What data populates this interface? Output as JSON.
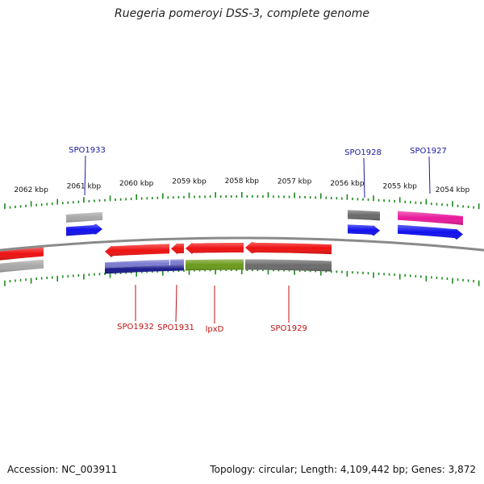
{
  "title": "Ruegeria pomeroyi DSS-3, complete genome",
  "footer": {
    "accession": "Accession: NC_003911",
    "summary": "Topology: circular; Length: 4,109,442 bp; Genes: 3,872"
  },
  "colors": {
    "backbone": "#8a8a8a",
    "tick": "#1a8a1a",
    "label_forward": "#1a1aa0",
    "label_reverse": "#c01010",
    "red": "#ee1111",
    "blue": "#1010ee",
    "navy": "#1a1a8c",
    "gray": "#a8a8a8",
    "darkgray": "#6a6a6a",
    "pink": "#e8199a",
    "olive": "#6a9a1a",
    "lavender": "#7b7bd0"
  },
  "scale": {
    "labels": [
      {
        "kbp": 2062,
        "text": "2062 kbp"
      },
      {
        "kbp": 2061,
        "text": "2061 kbp"
      },
      {
        "kbp": 2060,
        "text": "2060 kbp"
      },
      {
        "kbp": 2059,
        "text": "2059 kbp"
      },
      {
        "kbp": 2058,
        "text": "2058 kbp"
      },
      {
        "kbp": 2057,
        "text": "2057 kbp"
      },
      {
        "kbp": 2056,
        "text": "2056 kbp"
      },
      {
        "kbp": 2055,
        "text": "2055 kbp"
      },
      {
        "kbp": 2054,
        "text": "2054 kbp"
      }
    ]
  },
  "gene_labels": [
    {
      "text": "SPO1933",
      "strand": "forward"
    },
    {
      "text": "SPO1928",
      "strand": "forward"
    },
    {
      "text": "SPO1927",
      "strand": "forward"
    },
    {
      "text": "SPO1932",
      "strand": "reverse"
    },
    {
      "text": "SPO1931",
      "strand": "reverse"
    },
    {
      "text": "lpxD",
      "strand": "reverse"
    },
    {
      "text": "SPO1929",
      "strand": "reverse"
    }
  ]
}
